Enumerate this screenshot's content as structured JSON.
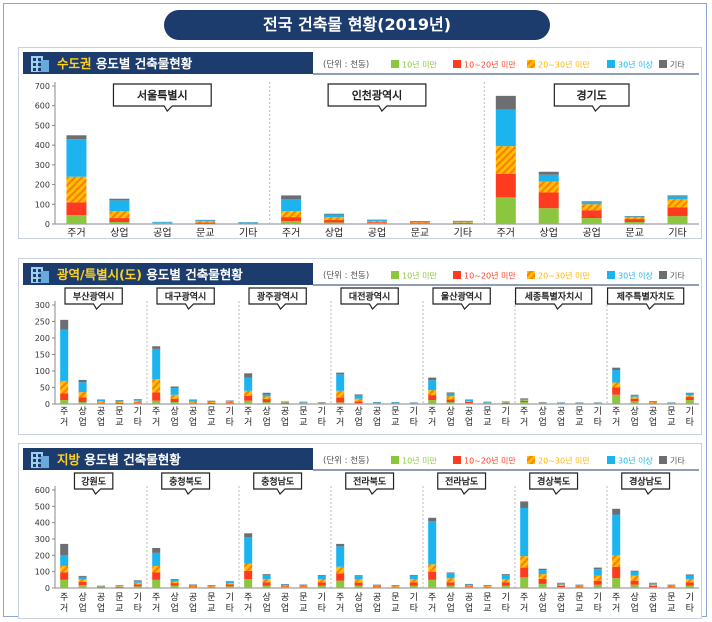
{
  "page_title": "전국 건축물 현황(2019년)",
  "unit_label": "(단위 : 천동)",
  "legend": [
    {
      "name": "10년 미만",
      "color": "#8cc63f"
    },
    {
      "name": "10~20년 미만",
      "color": "#ff3b1f"
    },
    {
      "name": "20~30년 미만",
      "color": "#ffb400"
    },
    {
      "name": "30년 이상",
      "color": "#1cb4ee"
    },
    {
      "name": "기타",
      "color": "#6d6e71"
    }
  ],
  "chart_data": [
    {
      "type": "bar",
      "stacked": true,
      "title_prefix": "수도권",
      "title_suffix": " 용도별 건축물현황",
      "ylim": [
        0,
        700
      ],
      "yticks": [
        0,
        100,
        200,
        300,
        400,
        500,
        600,
        700
      ],
      "categories": [
        "주거",
        "상업",
        "공업",
        "문교",
        "기타"
      ],
      "category_label_style": "horizontal",
      "grid": false,
      "groups": [
        {
          "name": "서울특별시",
          "bars": [
            [
              45,
              65,
              130,
              190,
              20
            ],
            [
              10,
              20,
              35,
              55,
              8
            ],
            [
              2,
              2,
              2,
              4,
              1
            ],
            [
              2,
              5,
              7,
              5,
              2
            ],
            [
              1,
              2,
              2,
              3,
              1
            ]
          ]
        },
        {
          "name": "인천광역시",
          "bars": [
            [
              15,
              20,
              30,
              60,
              20
            ],
            [
              8,
              12,
              14,
              14,
              4
            ],
            [
              4,
              5,
              6,
              5,
              2
            ],
            [
              3,
              4,
              3,
              3,
              2
            ],
            [
              2,
              3,
              4,
              5,
              2
            ]
          ]
        },
        {
          "name": "경기도",
          "bars": [
            [
              135,
              120,
              140,
              185,
              70
            ],
            [
              80,
              80,
              55,
              35,
              15
            ],
            [
              30,
              40,
              30,
              10,
              5
            ],
            [
              10,
              15,
              10,
              3,
              2
            ],
            [
              40,
              45,
              40,
              15,
              5
            ]
          ]
        }
      ]
    },
    {
      "type": "bar",
      "stacked": true,
      "title_prefix": "광역/특별시(도)",
      "title_suffix": " 용도별 건축물현황",
      "ylim": [
        0,
        300
      ],
      "yticks": [
        0,
        50,
        100,
        150,
        200,
        250,
        300
      ],
      "categories": [
        "주거",
        "상업",
        "공업",
        "문교",
        "기타"
      ],
      "category_label_style": "vertical",
      "grid": false,
      "groups": [
        {
          "name": "부산광역시",
          "bars": [
            [
              12,
              20,
              38,
              155,
              30
            ],
            [
              6,
              14,
              16,
              30,
              7
            ],
            [
              2,
              2,
              5,
              4,
              1
            ],
            [
              1,
              2,
              4,
              4,
              1
            ],
            [
              2,
              3,
              5,
              4,
              1
            ]
          ]
        },
        {
          "name": "대구광역시",
          "bars": [
            [
              10,
              25,
              40,
              92,
              8
            ],
            [
              6,
              10,
              12,
              20,
              5
            ],
            [
              2,
              2,
              3,
              6,
              1
            ],
            [
              1,
              2,
              3,
              3,
              1
            ],
            [
              2,
              3,
              3,
              2,
              1
            ]
          ]
        },
        {
          "name": "광주광역시",
          "bars": [
            [
              10,
              15,
              15,
              40,
              13
            ],
            [
              6,
              9,
              8,
              6,
              5
            ],
            [
              1,
              2,
              2,
              2,
              1
            ],
            [
              1,
              1,
              2,
              2,
              1
            ],
            [
              1,
              1,
              2,
              1,
              1
            ]
          ]
        },
        {
          "name": "대전광역시",
          "bars": [
            [
              5,
              15,
              20,
              50,
              5
            ],
            [
              3,
              5,
              8,
              10,
              3
            ],
            [
              1,
              1,
              1,
              2,
              1
            ],
            [
              1,
              1,
              1,
              2,
              1
            ],
            [
              1,
              1,
              1,
              1,
              1
            ]
          ]
        },
        {
          "name": "울산광역시",
          "bars": [
            [
              12,
              15,
              15,
              30,
              8
            ],
            [
              6,
              8,
              10,
              8,
              3
            ],
            [
              3,
              3,
              3,
              4,
              1
            ],
            [
              1,
              1,
              2,
              2,
              1
            ],
            [
              1,
              2,
              2,
              2,
              1
            ]
          ]
        },
        {
          "name": "세종특별자치시",
          "bars": [
            [
              6,
              3,
              2,
              4,
              2
            ],
            [
              2,
              1,
              1,
              1,
              1
            ],
            [
              1,
              1,
              1,
              1,
              1
            ],
            [
              1,
              1,
              1,
              1,
              1
            ],
            [
              1,
              1,
              1,
              1,
              1
            ]
          ]
        },
        {
          "name": "제주특별자치도",
          "bars": [
            [
              28,
              22,
              15,
              38,
              7
            ],
            [
              8,
              8,
              6,
              4,
              2
            ],
            [
              2,
              2,
              2,
              2,
              1
            ],
            [
              1,
              1,
              1,
              1,
              1
            ],
            [
              12,
              10,
              5,
              5,
              2
            ]
          ]
        }
      ]
    },
    {
      "type": "bar",
      "stacked": true,
      "title_prefix": "지방",
      "title_suffix": " 용도별 건축물현황",
      "ylim": [
        0,
        600
      ],
      "yticks": [
        0,
        100,
        200,
        300,
        400,
        500,
        600
      ],
      "categories": [
        "주거",
        "상업",
        "공업",
        "문교",
        "기타"
      ],
      "category_label_style": "vertical",
      "grid": false,
      "groups": [
        {
          "name": "강원도",
          "bars": [
            [
              50,
              45,
              40,
              65,
              70
            ],
            [
              18,
              20,
              15,
              15,
              6
            ],
            [
              3,
              3,
              3,
              3,
              2
            ],
            [
              3,
              4,
              4,
              4,
              2
            ],
            [
              10,
              12,
              10,
              10,
              5
            ]
          ]
        },
        {
          "name": "충청북도",
          "bars": [
            [
              50,
              45,
              40,
              80,
              30
            ],
            [
              15,
              15,
              10,
              10,
              5
            ],
            [
              4,
              5,
              5,
              5,
              3
            ],
            [
              4,
              4,
              4,
              4,
              2
            ],
            [
              10,
              12,
              8,
              8,
              4
            ]
          ]
        },
        {
          "name": "충청남도",
          "bars": [
            [
              55,
              50,
              45,
              160,
              25
            ],
            [
              15,
              20,
              20,
              25,
              5
            ],
            [
              5,
              5,
              6,
              5,
              3
            ],
            [
              5,
              5,
              5,
              5,
              2
            ],
            [
              15,
              20,
              20,
              20,
              5
            ]
          ]
        },
        {
          "name": "전라북도",
          "bars": [
            [
              45,
              45,
              40,
              125,
              15
            ],
            [
              15,
              18,
              20,
              20,
              5
            ],
            [
              4,
              5,
              5,
              5,
              2
            ],
            [
              4,
              4,
              4,
              4,
              2
            ],
            [
              15,
              20,
              20,
              20,
              5
            ]
          ]
        },
        {
          "name": "전라남도",
          "bars": [
            [
              50,
              50,
              45,
              265,
              20
            ],
            [
              15,
              20,
              25,
              30,
              5
            ],
            [
              5,
              5,
              6,
              6,
              3
            ],
            [
              4,
              4,
              4,
              4,
              2
            ],
            [
              15,
              20,
              20,
              25,
              5
            ]
          ]
        },
        {
          "name": "경상북도",
          "bars": [
            [
              65,
              60,
              70,
              295,
              40
            ],
            [
              25,
              30,
              30,
              25,
              8
            ],
            [
              5,
              8,
              8,
              8,
              3
            ],
            [
              4,
              5,
              5,
              5,
              2
            ],
            [
              20,
              25,
              30,
              40,
              10
            ]
          ]
        },
        {
          "name": "경상남도",
          "bars": [
            [
              60,
              70,
              70,
              250,
              35
            ],
            [
              20,
              25,
              30,
              25,
              6
            ],
            [
              5,
              8,
              8,
              8,
              3
            ],
            [
              4,
              5,
              5,
              5,
              2
            ],
            [
              15,
              20,
              20,
              20,
              8
            ]
          ]
        }
      ]
    }
  ]
}
